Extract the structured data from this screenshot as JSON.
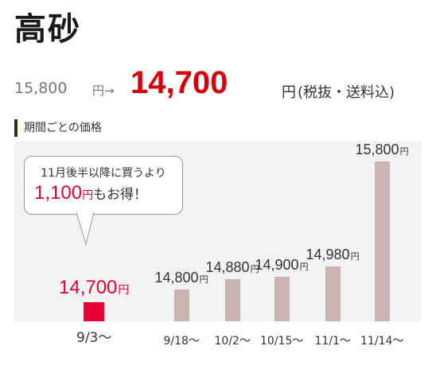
{
  "title": "高砂",
  "price": {
    "original": "15,800",
    "original_unit": "円→",
    "sale": "14,700",
    "sale_unit": "円",
    "note": "(税抜・送料込)"
  },
  "section_title": "期間ごとの価格",
  "callout": {
    "line1": "11月後半以降に買うより",
    "amount": "1,100",
    "amount_unit": "円",
    "rest": "もお得！"
  },
  "colors": {
    "highlight_bar": "#e60033",
    "bar": "#cbb3b1",
    "accent_text": "#d7000f",
    "chart_bg": "#f2f2f2"
  },
  "chart_data": {
    "type": "bar",
    "title": "期間ごとの価格",
    "categories": [
      "9/3～",
      "9/18～",
      "10/2～",
      "10/15～",
      "11/1～",
      "11/14～"
    ],
    "values": [
      14700,
      14800,
      14880,
      14900,
      14980,
      15800
    ],
    "value_labels": [
      "14,700",
      "14,800",
      "14,880",
      "14,900",
      "14,980",
      "15,800"
    ],
    "value_unit": "円",
    "highlight_index": 0,
    "ylim": [
      14550,
      15800
    ],
    "xlabel": "",
    "ylabel": "",
    "grid": false,
    "legend": "none"
  }
}
